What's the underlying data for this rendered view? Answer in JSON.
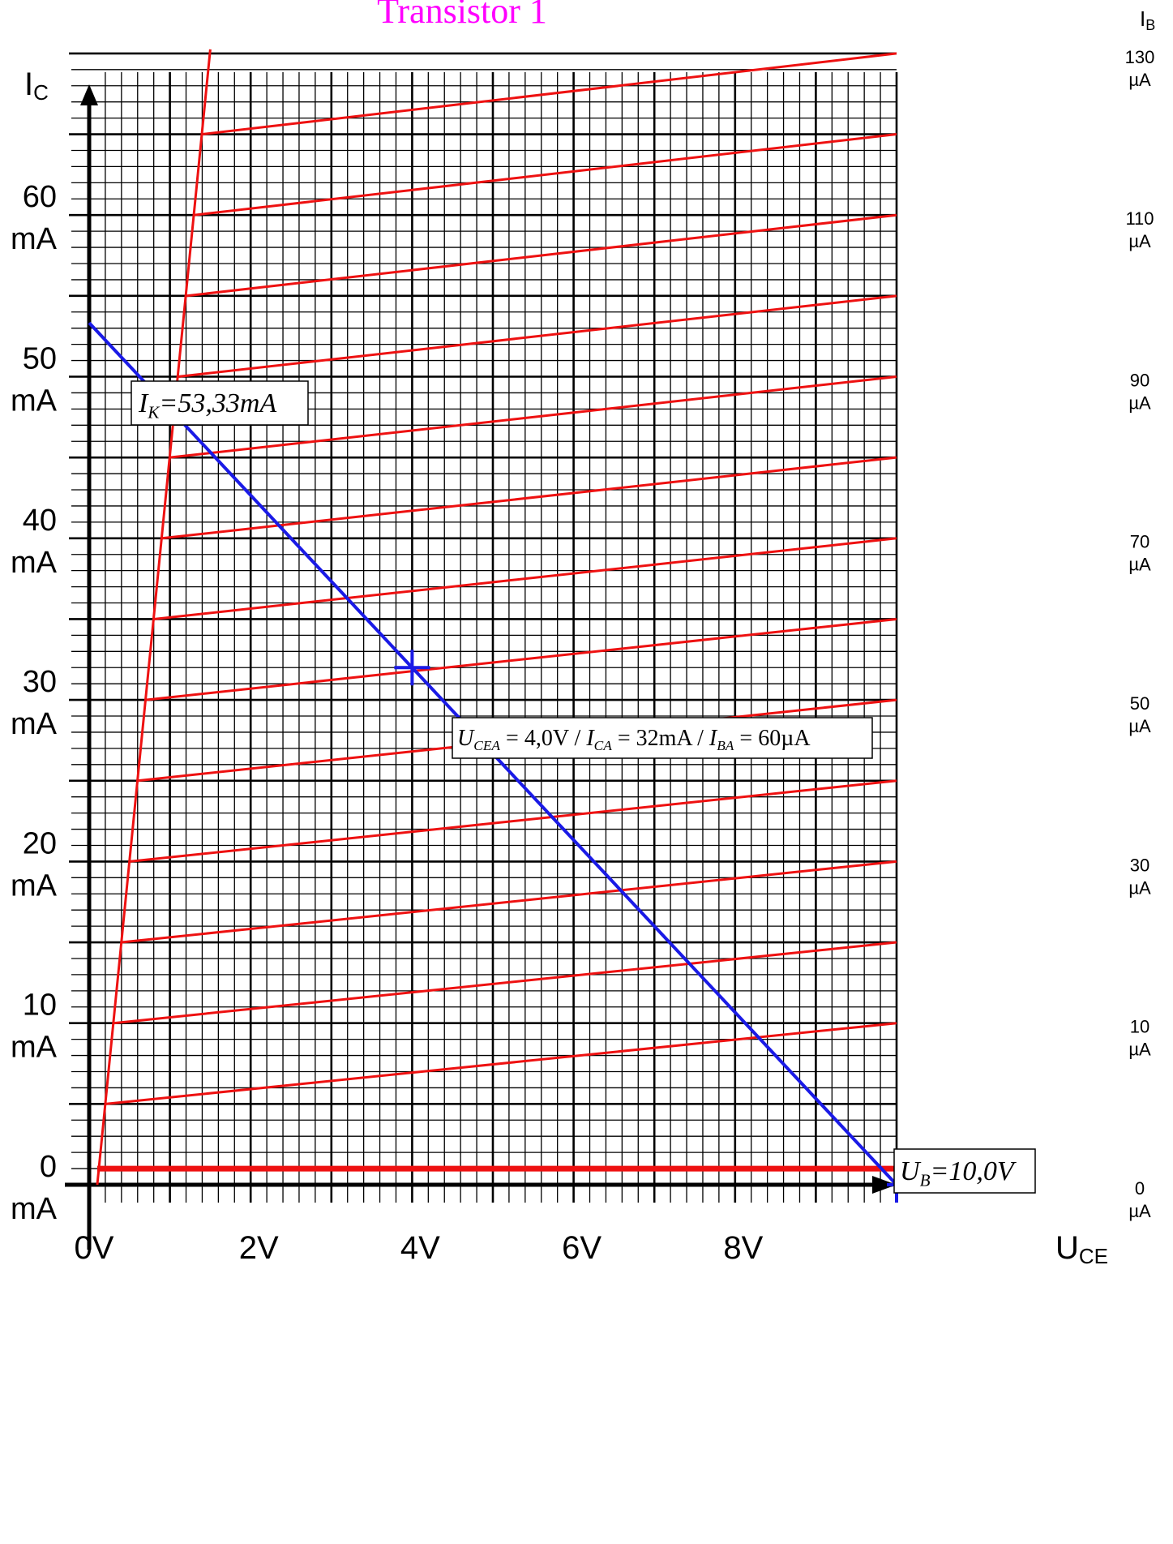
{
  "chart_data": {
    "type": "line",
    "title": "Transistor 1",
    "x_axis": {
      "label_main": "U",
      "label_sub": "CE",
      "range": [
        0,
        10
      ],
      "ticks": [
        {
          "value": 0,
          "label": "0V"
        },
        {
          "value": 2,
          "label": "2V"
        },
        {
          "value": 4,
          "label": "4V"
        },
        {
          "value": 6,
          "label": "6V"
        },
        {
          "value": 8,
          "label": "8V"
        }
      ]
    },
    "y_axis": {
      "label_main": "I",
      "label_sub": "C",
      "range": [
        0,
        70
      ],
      "ticks": [
        {
          "value": 0,
          "line1": "0",
          "line2": "mA"
        },
        {
          "value": 10,
          "line1": "10",
          "line2": "mA"
        },
        {
          "value": 20,
          "line1": "20",
          "line2": "mA"
        },
        {
          "value": 30,
          "line1": "30",
          "line2": "mA"
        },
        {
          "value": 40,
          "line1": "40",
          "line2": "mA"
        },
        {
          "value": 50,
          "line1": "50",
          "line2": "mA"
        },
        {
          "value": 60,
          "line1": "60",
          "line2": "mA"
        }
      ]
    },
    "right_axis": {
      "label_main": "I",
      "label_sub": "B",
      "ticks": [
        {
          "ic_value": -1,
          "line1": "0",
          "line2": "µA"
        },
        {
          "ic_value": 9,
          "line1": "10",
          "line2": "µA"
        },
        {
          "ic_value": 19,
          "line1": "30",
          "line2": "µA"
        },
        {
          "ic_value": 29,
          "line1": "50",
          "line2": "µA"
        },
        {
          "ic_value": 39,
          "line1": "70",
          "line2": "µA"
        },
        {
          "ic_value": 49,
          "line1": "90",
          "line2": "µA"
        },
        {
          "ic_value": 59,
          "line1": "110",
          "line2": "µA"
        },
        {
          "ic_value": 69,
          "line1": "130",
          "line2": "µA"
        }
      ]
    },
    "grid": true,
    "saturation_line": [
      [
        0.1,
        0
      ],
      [
        1.5,
        70
      ]
    ],
    "ib_zero_line": {
      "x": [
        0.1,
        10
      ],
      "y": 1
    },
    "characteristic_curves": [
      {
        "x": [
          0.2,
          10
        ],
        "y": [
          5,
          10
        ]
      },
      {
        "x": [
          0.3,
          10
        ],
        "y": [
          10,
          15
        ]
      },
      {
        "x": [
          0.4,
          10
        ],
        "y": [
          15,
          20
        ]
      },
      {
        "x": [
          0.5,
          10
        ],
        "y": [
          20,
          25
        ]
      },
      {
        "x": [
          0.6,
          10
        ],
        "y": [
          25,
          30
        ]
      },
      {
        "x": [
          0.7,
          10
        ],
        "y": [
          30,
          35
        ]
      },
      {
        "x": [
          0.8,
          10
        ],
        "y": [
          35,
          40
        ]
      },
      {
        "x": [
          0.9,
          10
        ],
        "y": [
          40,
          45
        ]
      },
      {
        "x": [
          1.0,
          10
        ],
        "y": [
          45,
          50
        ]
      },
      {
        "x": [
          1.1,
          10
        ],
        "y": [
          50,
          55
        ]
      },
      {
        "x": [
          1.2,
          10
        ],
        "y": [
          55,
          60
        ]
      },
      {
        "x": [
          1.3,
          10
        ],
        "y": [
          60,
          65
        ]
      },
      {
        "x": [
          1.4,
          10
        ],
        "y": [
          65,
          70
        ]
      }
    ],
    "load_line": {
      "x": [
        0,
        10
      ],
      "y": [
        53.33,
        0
      ]
    },
    "operating_point": {
      "x": 4.0,
      "y": 32
    },
    "supply_point": {
      "x": 10.0,
      "y": 0
    },
    "annotations": {
      "short_circuit": {
        "var": "I",
        "sub": "K",
        "rhs": "=53,33mA"
      },
      "operating": {
        "u": "U",
        "u_sub": "CEA",
        "u_val": "= 4,0V / ",
        "i": "I",
        "i_sub": "CA",
        "i_val": "= 32mA / ",
        "b": "I",
        "b_sub": "BA",
        "b_val": "= 60µA"
      },
      "supply": {
        "var": "U",
        "sub": "B",
        "rhs": "=10,0V"
      }
    },
    "colors": {
      "curves": "#ee1111",
      "load_line": "#1a1ae6",
      "title": "#ff00ff",
      "grid": "#000000"
    }
  }
}
